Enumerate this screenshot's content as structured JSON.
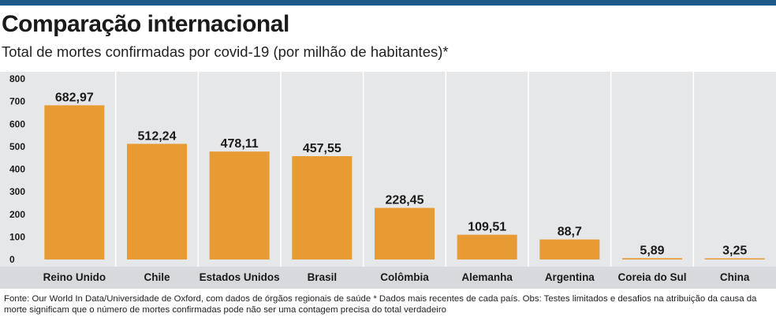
{
  "header": {
    "title": "Comparação internacional",
    "subtitle": "Total de mortes confirmadas por covid-19 (por milhão de habitantes)*"
  },
  "footnote": "Fonte: Our World In Data/Universidade de Oxford, com dados de órgãos regionais de saúde * Dados mais recentes de cada país. Obs: Testes limitados e desafios na atribuição da causa da morte significam que o número de mortes confirmadas pode não ser uma contagem precisa do total verdadeiro",
  "colors": {
    "bar": "#e89a33",
    "accent_rule": "#1d5a8a",
    "plot_background": "#e6e7e9",
    "axis_band": "#d7d9dc",
    "grid": "#ffffff"
  },
  "chart_data": {
    "type": "bar",
    "title": "Comparação internacional",
    "subtitle": "Total de mortes confirmadas por covid-19 (por milhão de habitantes)*",
    "xlabel": "",
    "ylabel": "",
    "ylim": [
      0,
      800
    ],
    "yticks": [
      0,
      100,
      200,
      300,
      400,
      500,
      600,
      700,
      800
    ],
    "ytick_labels": [
      "0",
      "100",
      "200",
      "300",
      "400",
      "500",
      "600",
      "700",
      "800"
    ],
    "grid": "vertical",
    "categories": [
      "Reino Unido",
      "Chile",
      "Estados Unidos",
      "Brasil",
      "Colômbia",
      "Alemanha",
      "Argentina",
      "Coreia do Sul",
      "China"
    ],
    "values": [
      682.97,
      512.24,
      478.11,
      457.55,
      228.45,
      109.51,
      88.7,
      5.89,
      3.25
    ],
    "value_labels": [
      "682,97",
      "512,24",
      "478,11",
      "457,55",
      "228,45",
      "109,51",
      "88,7",
      "5,89",
      "3,25"
    ]
  }
}
